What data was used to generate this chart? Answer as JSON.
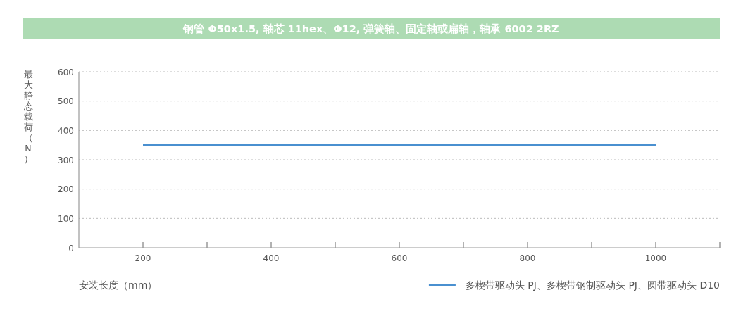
{
  "chart_data": {
    "type": "line",
    "title": "钢管 Φ50x1.5, 轴芯 11hex、Φ12, 弹簧轴、固定轴或扁轴，轴承 6002 2RZ",
    "xlabel": "安装长度（mm）",
    "ylabel": "最大静态载荷（N）",
    "x": [
      200,
      1000
    ],
    "series": [
      {
        "name": "多楔带驱动头 PJ、多楔带钢制驱动头 PJ、圆带驱动头 D10",
        "color": "#4a90d0",
        "values": [
          350,
          350
        ]
      }
    ],
    "xlim": [
      100,
      1100
    ],
    "xticks": [
      200,
      {
        "value": 300,
        "label": null
      },
      400,
      {
        "value": 500,
        "label": null
      },
      600,
      {
        "value": 700,
        "label": null
      },
      800,
      {
        "value": 900,
        "label": null
      },
      1000,
      {
        "value": 1100,
        "label": null
      }
    ],
    "ylim": [
      0,
      600
    ],
    "yticks": [
      0,
      100,
      200,
      300,
      400,
      500,
      600
    ],
    "grid": "y",
    "legend": "bottom right",
    "marker": "none",
    "line_style": "solid"
  }
}
